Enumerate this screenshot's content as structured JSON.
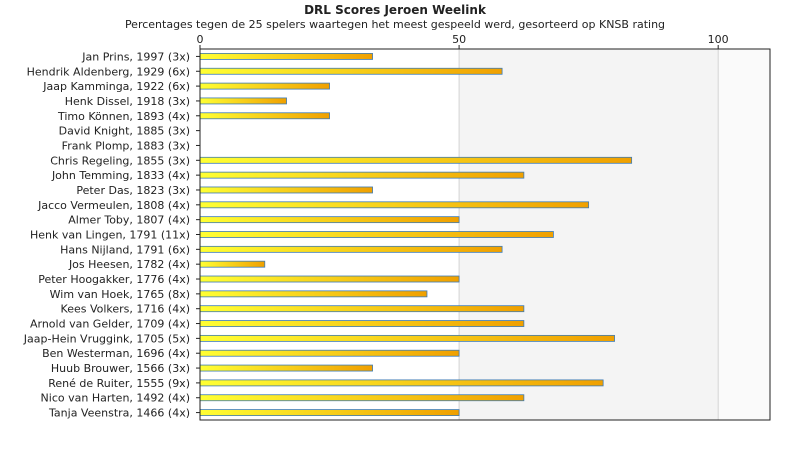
{
  "chart_data": {
    "type": "bar",
    "orientation": "horizontal",
    "title": "DRL Scores Jeroen Weelink",
    "subtitle": "Percentages tegen de 25 spelers waartegen het meest gespeeld werd, gesorteerd op KNSB rating",
    "xlim": [
      0,
      110
    ],
    "xticks": [
      0,
      50,
      100
    ],
    "categories": [
      "Jan Prins, 1997 (3x)",
      "Hendrik Aldenberg, 1929 (6x)",
      "Jaap Kamminga, 1922 (6x)",
      "Henk Dissel, 1918 (3x)",
      "Timo Können, 1893 (4x)",
      "David Knight, 1885 (3x)",
      "Frank Plomp, 1883 (3x)",
      "Chris Regeling, 1855 (3x)",
      "John Temming, 1833 (4x)",
      "Peter Das, 1823 (3x)",
      "Jacco Vermeulen, 1808 (4x)",
      "Almer Toby, 1807 (4x)",
      "Henk van Lingen, 1791 (11x)",
      "Hans Nijland, 1791 (6x)",
      "Jos Heesen, 1782 (4x)",
      "Peter Hoogakker, 1776 (4x)",
      "Wim van Hoek, 1765 (8x)",
      "Kees Volkers, 1716 (4x)",
      "Arnold van Gelder, 1709 (4x)",
      "Jaap-Hein Vruggink, 1705 (5x)",
      "Ben Westerman, 1696 (4x)",
      "Huub Brouwer, 1566 (3x)",
      "René de Ruiter, 1555 (9x)",
      "Nico van Harten, 1492 (4x)",
      "Tanja Veenstra, 1466 (4x)"
    ],
    "values": [
      33.3,
      58.3,
      25,
      16.7,
      25,
      0,
      0,
      83.3,
      62.5,
      33.3,
      75,
      50,
      68.2,
      58.3,
      12.5,
      50,
      43.8,
      62.5,
      62.5,
      80,
      50,
      33.3,
      77.8,
      62.5,
      50
    ],
    "colors": {
      "bar_start": "#ffff33",
      "bar_end": "#f0a000",
      "bar_stroke": "#3d7bb5",
      "band_light": "#f4f4f4",
      "band_lighter": "#fafafa",
      "grid": "#d4d4d4"
    },
    "grid": true
  }
}
